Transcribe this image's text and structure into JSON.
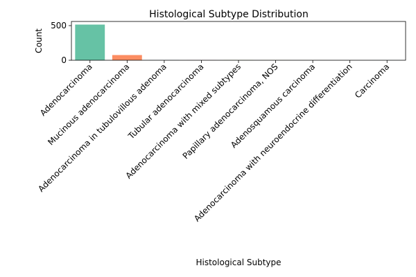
{
  "chart_data": {
    "type": "bar",
    "title": "Histological Subtype Distribution",
    "xlabel": "Histological Subtype",
    "ylabel": "Count",
    "categories": [
      "Adenocarcinoma",
      "Mucinous adenocarcinoma",
      "Adenocarcinoma in tubulovillous adenoma",
      "Tubular adenocarcinoma",
      "Adenocarcinoma with mixed subtypes",
      "Papillary adenocarcinoma, NOS",
      "Adenosquamous carcinoma",
      "Adenocarcinoma with neuroendocrine differentiation",
      "Carcinoma"
    ],
    "values": [
      515,
      75,
      3,
      2,
      2,
      1,
      1,
      1,
      1
    ],
    "colors": [
      "#66c2a5",
      "#fc8d62",
      "#8da0cb",
      "#e78ac3",
      "#a6d854",
      "#ffd92f",
      "#e5c494",
      "#b3b3b3",
      "#66c2a5"
    ],
    "yticks": [
      0,
      500
    ],
    "ylim": [
      0,
      560
    ],
    "grid": false
  }
}
